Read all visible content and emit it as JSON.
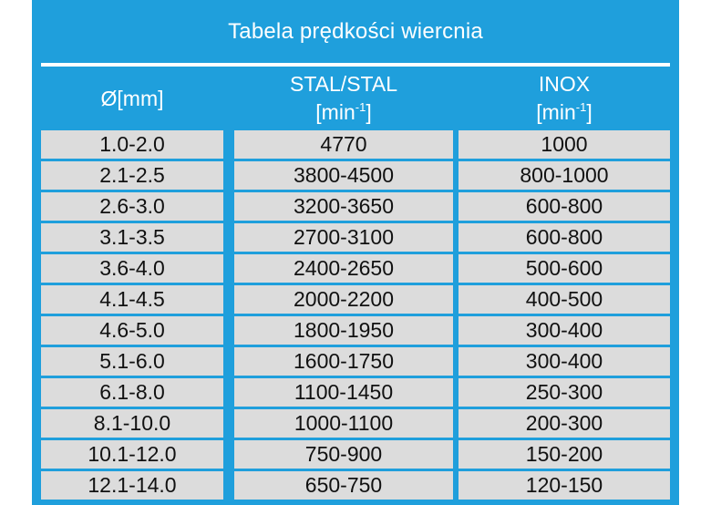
{
  "title": "Tabela prędkości wiercnia",
  "headers": {
    "diameter": "Ø[mm]",
    "steel_line1": "STAL/STAL",
    "steel_unit_base": "[min",
    "steel_unit_sup": "-1",
    "steel_unit_close": "]",
    "inox_line1": "INOX",
    "inox_unit_base": "[min",
    "inox_unit_sup": "-1",
    "inox_unit_close": "]"
  },
  "rows": [
    {
      "diameter": "1.0-2.0",
      "steel": "4770",
      "inox": "1000"
    },
    {
      "diameter": "2.1-2.5",
      "steel": "3800-4500",
      "inox": "800-1000"
    },
    {
      "diameter": "2.6-3.0",
      "steel": "3200-3650",
      "inox": "600-800"
    },
    {
      "diameter": "3.1-3.5",
      "steel": "2700-3100",
      "inox": "600-800"
    },
    {
      "diameter": "3.6-4.0",
      "steel": "2400-2650",
      "inox": "500-600"
    },
    {
      "diameter": "4.1-4.5",
      "steel": "2000-2200",
      "inox": "400-500"
    },
    {
      "diameter": "4.6-5.0",
      "steel": "1800-1950",
      "inox": "300-400"
    },
    {
      "diameter": "5.1-6.0",
      "steel": "1600-1750",
      "inox": "300-400"
    },
    {
      "diameter": "6.1-8.0",
      "steel": "1100-1450",
      "inox": "250-300"
    },
    {
      "diameter": "8.1-10.0",
      "steel": "1000-1100",
      "inox": "200-300"
    },
    {
      "diameter": "10.1-12.0",
      "steel": "750-900",
      "inox": "150-200"
    },
    {
      "diameter": "12.1-14.0",
      "steel": "650-750",
      "inox": "120-150"
    }
  ],
  "colors": {
    "panel": "#1f9fdc",
    "cell": "#dcdcdc",
    "header_text": "#ffffff",
    "cell_text": "#111111"
  }
}
